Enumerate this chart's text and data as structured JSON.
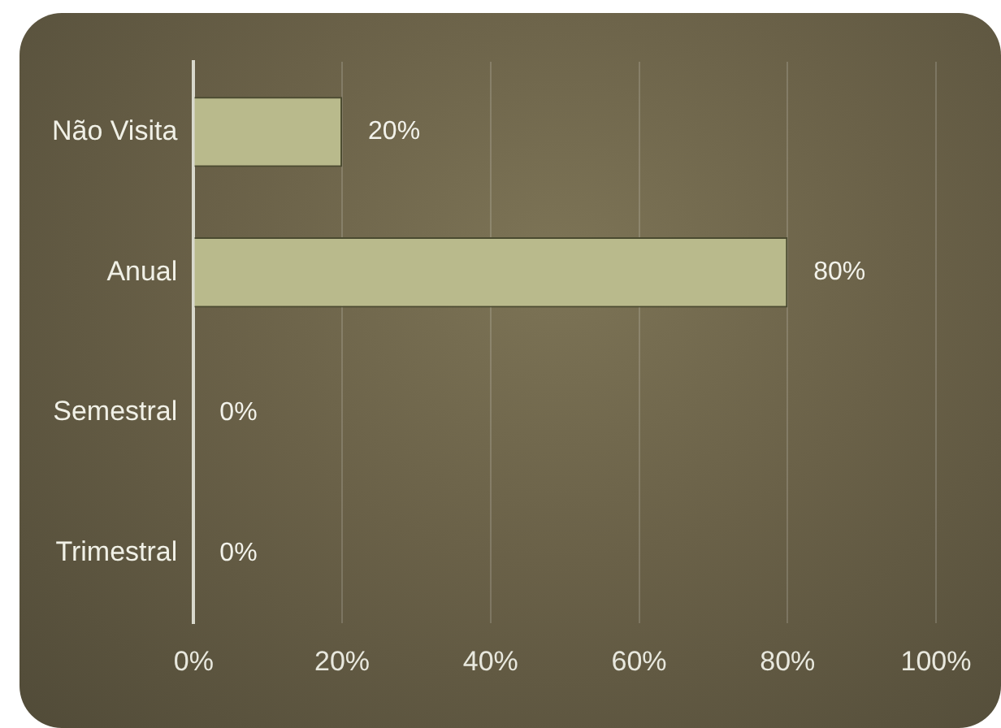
{
  "chart_data": {
    "type": "bar",
    "orientation": "horizontal",
    "categories": [
      "Não Visita",
      "Anual",
      "Semestral",
      "Trimestral"
    ],
    "values": [
      20,
      80,
      0,
      0
    ],
    "color": "#b9ba8c",
    "value_labels": [
      "20%",
      "80%",
      "0%",
      "0%"
    ],
    "xlim": [
      0,
      100
    ],
    "xticks": [
      {
        "value": 0,
        "label": "0%"
      },
      {
        "value": 20,
        "label": "20%"
      },
      {
        "value": 40,
        "label": "40%"
      },
      {
        "value": 60,
        "label": "60%"
      },
      {
        "value": 80,
        "label": "80%"
      },
      {
        "value": 100,
        "label": "100%"
      }
    ],
    "grid": "x",
    "legend": false
  }
}
